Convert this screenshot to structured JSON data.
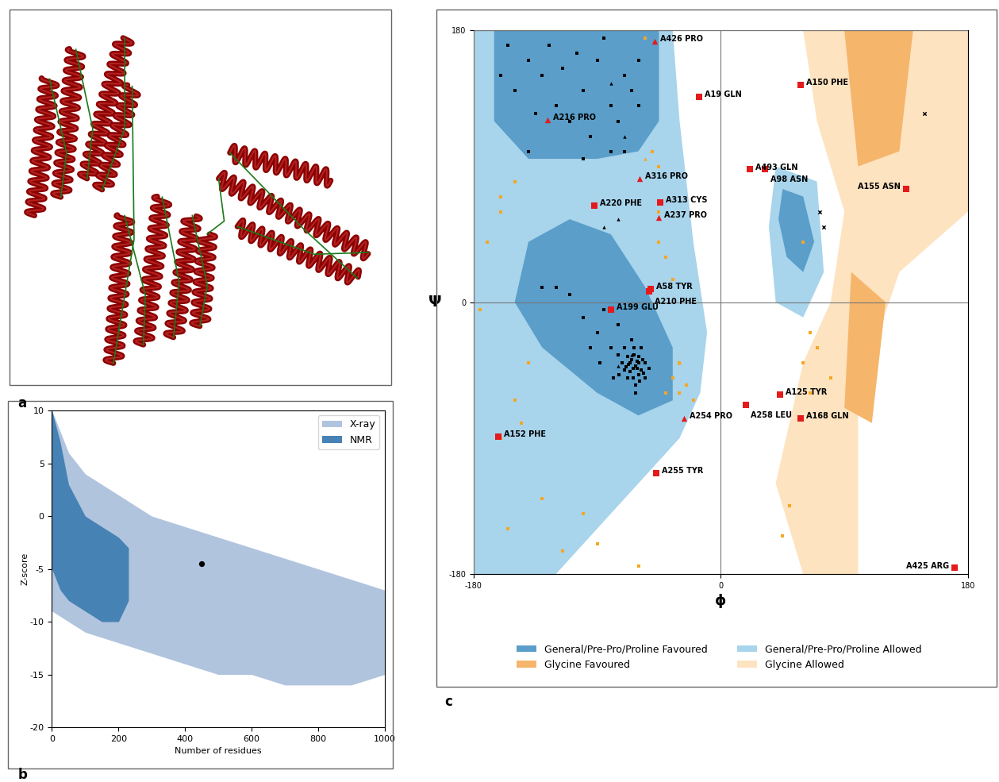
{
  "panel_labels": [
    "a",
    "b",
    "c"
  ],
  "chart_data": [
    {
      "type": "area",
      "xlabel": "Number of residues",
      "ylabel": "Z-score",
      "xlim": [
        0,
        1000
      ],
      "ylim": [
        -20,
        10
      ],
      "xticks": [
        0,
        200,
        400,
        600,
        800,
        1000
      ],
      "yticks": [
        -20,
        -15,
        -10,
        -5,
        0,
        5,
        10
      ],
      "legend": "upper right",
      "series": [
        {
          "name": "X-ray",
          "type": "area",
          "color": "#b0c4de",
          "x": [
            0,
            50,
            100,
            200,
            300,
            400,
            500,
            600,
            700,
            800,
            900,
            1000
          ],
          "upper": [
            10,
            6,
            4,
            2,
            0,
            -1,
            -2,
            -3,
            -4,
            -5,
            -6,
            -7
          ],
          "lower": [
            -9,
            -10,
            -11,
            -12,
            -13,
            -14,
            -15,
            -15,
            -16,
            -16,
            -16,
            -15
          ]
        },
        {
          "name": "NMR",
          "type": "area",
          "color": "#4682b4",
          "x": [
            0,
            25,
            50,
            100,
            150,
            200,
            230
          ],
          "upper": [
            10,
            7,
            3,
            0,
            -1,
            -2,
            -3
          ],
          "lower": [
            -5,
            -7,
            -8,
            -9,
            -10,
            -10,
            -8
          ]
        },
        {
          "type": "scatter",
          "color": "#000000",
          "marker": "circle",
          "x": [
            450
          ],
          "values": [
            -4.5
          ]
        }
      ]
    },
    {
      "type": "scatter",
      "xlabel": "ϕ",
      "ylabel": "Ψ",
      "xlim": [
        -180,
        180
      ],
      "ylim": [
        -180,
        180
      ],
      "xticks": [
        -180,
        0,
        180
      ],
      "yticks": [
        -180,
        0,
        180
      ],
      "grid": true,
      "legend": "lower center",
      "regions": [
        {
          "name": "Glycine Allowed",
          "color": "#fde3c0",
          "polygons": [
            [
              [
                60,
                180
              ],
              [
                180,
                180
              ],
              [
                180,
                60
              ],
              [
                130,
                20
              ],
              [
                100,
                -60
              ],
              [
                100,
                -180
              ],
              [
                60,
                -180
              ],
              [
                40,
                -120
              ],
              [
                60,
                -40
              ],
              [
                80,
                0
              ],
              [
                90,
                60
              ],
              [
                70,
                120
              ]
            ]
          ]
        },
        {
          "name": "Glycine Favoured",
          "color": "#f5b56b",
          "polygons": [
            [
              [
                90,
                180
              ],
              [
                140,
                180
              ],
              [
                130,
                100
              ],
              [
                100,
                90
              ]
            ],
            [
              [
                95,
                20
              ],
              [
                120,
                0
              ],
              [
                110,
                -80
              ],
              [
                90,
                -70
              ]
            ]
          ]
        },
        {
          "name": "General/Pre-Pro/Proline Allowed",
          "color": "#a8d4ec",
          "polygons": [
            [
              [
                -180,
                180
              ],
              [
                -35,
                180
              ],
              [
                -30,
                120
              ],
              [
                -20,
                40
              ],
              [
                -10,
                -20
              ],
              [
                -15,
                -60
              ],
              [
                -30,
                -90
              ],
              [
                -60,
                -120
              ],
              [
                -90,
                -150
              ],
              [
                -120,
                -180
              ],
              [
                -180,
                -180
              ]
            ],
            [
              [
                40,
                90
              ],
              [
                70,
                80
              ],
              [
                75,
                20
              ],
              [
                60,
                -10
              ],
              [
                40,
                0
              ],
              [
                35,
                50
              ]
            ]
          ]
        },
        {
          "name": "General/Pre-Pro/Proline Favoured",
          "color": "#5a9ec9",
          "polygons": [
            [
              [
                -165,
                180
              ],
              [
                -45,
                180
              ],
              [
                -45,
                120
              ],
              [
                -60,
                100
              ],
              [
                -90,
                95
              ],
              [
                -140,
                95
              ],
              [
                -165,
                120
              ]
            ],
            [
              [
                -140,
                40
              ],
              [
                -110,
                55
              ],
              [
                -80,
                45
              ],
              [
                -55,
                10
              ],
              [
                -35,
                -30
              ],
              [
                -35,
                -65
              ],
              [
                -60,
                -75
              ],
              [
                -90,
                -60
              ],
              [
                -130,
                -30
              ],
              [
                -150,
                0
              ]
            ],
            [
              [
                45,
                75
              ],
              [
                60,
                70
              ],
              [
                68,
                40
              ],
              [
                60,
                20
              ],
              [
                48,
                30
              ],
              [
                42,
                55
              ]
            ]
          ]
        }
      ],
      "series": [
        {
          "color": "#000000",
          "marker": "square",
          "x": [
            -60,
            -62,
            -65,
            -58,
            -63,
            -67,
            -70,
            -55,
            -60,
            -64,
            -68,
            -72,
            -57,
            -61,
            -66,
            -59,
            -63,
            -75,
            -70,
            -80,
            -55,
            -62,
            -68,
            -65,
            -90,
            -100,
            -85,
            -110,
            -120,
            -95,
            -78,
            -58,
            -60,
            -64,
            -66,
            -61,
            -69,
            -56,
            -52,
            -74,
            -62,
            -130,
            -75,
            -88,
            -120,
            -130,
            -100,
            -90,
            -70,
            -80,
            -140,
            -150,
            -110,
            -95,
            -75,
            -65,
            -60,
            -85,
            -125,
            -155,
            -70,
            -100,
            -140,
            -60,
            -115,
            -135,
            -105,
            -80,
            -160
          ],
          "values": [
            -40,
            -42,
            -38,
            -45,
            -35,
            -41,
            -45,
            -40,
            -48,
            -50,
            -36,
            -40,
            -38,
            -44,
            -46,
            -52,
            -30,
            -35,
            -30,
            -30,
            -50,
            -55,
            -50,
            -25,
            -20,
            -10,
            -5,
            5,
            10,
            -30,
            -50,
            -30,
            -36,
            -44,
            -40,
            -39,
            -43,
            -47,
            -44,
            -48,
            -60,
            10,
            -15,
            -40,
            130,
            150,
            140,
            160,
            150,
            130,
            160,
            140,
            120,
            110,
            120,
            140,
            160,
            175,
            170,
            170,
            100,
            95,
            100,
            130,
            155,
            125,
            165,
            100,
            150
          ]
        },
        {
          "color": "#000000",
          "marker": "triangle",
          "x": [
            -75,
            -85,
            -80,
            -70,
            -75,
            -65
          ],
          "values": [
            55,
            50,
            145,
            110,
            -42,
            -35
          ]
        },
        {
          "color": "#000000",
          "marker": "x",
          "x": [
            72,
            75,
            148
          ],
          "values": [
            60,
            50,
            125
          ]
        },
        {
          "color": "#f5a623",
          "marker": "square",
          "x": [
            -150,
            -160,
            -175,
            -140,
            -155,
            -160,
            -40,
            -30,
            -35,
            -30,
            -45,
            -50,
            -160,
            -170,
            -150,
            -145,
            60,
            65,
            70,
            60,
            65,
            80,
            50,
            45,
            -115,
            -130,
            -90,
            -60,
            -100,
            -45,
            -40,
            -45,
            -35,
            -25,
            -20,
            -55
          ],
          "values": [
            80,
            60,
            -5,
            -40,
            -150,
            -90,
            -60,
            -40,
            -50,
            -60,
            90,
            100,
            70,
            40,
            -65,
            -80,
            40,
            -20,
            -30,
            -40,
            -60,
            -50,
            -135,
            -155,
            -165,
            -130,
            -160,
            -175,
            -140,
            60,
            30,
            40,
            15,
            -55,
            -65,
            175
          ]
        },
        {
          "color": "#f5a623",
          "marker": "triangle",
          "x": [
            -30,
            -55
          ],
          "values": [
            -40,
            95
          ]
        },
        {
          "color": "#e41a1c",
          "marker": "square",
          "x": [
            -16,
            58,
            21,
            32,
            135,
            -92,
            -44,
            -51,
            -52,
            -80,
            43,
            18,
            58,
            -162,
            -47,
            170
          ],
          "values": [
            136,
            144,
            88,
            88,
            75,
            64,
            66,
            9,
            7,
            -5,
            -61,
            -68,
            -77,
            -89,
            -113,
            -176
          ],
          "point_labels": [
            "A19 GLN",
            "A150 PHE",
            "A493 GLN",
            "A98 ASN",
            "A155 ASN",
            "A220 PHE",
            "A313 CYS",
            "A58 TYR",
            "A210 PHE",
            "A199 GLU",
            "A125 TYR",
            "A258 LEU",
            "A168 GLN",
            "A152 PHE",
            "A255 TYR",
            "A425 ARG"
          ]
        },
        {
          "color": "#e41a1c",
          "marker": "triangle",
          "x": [
            -48,
            -126,
            -59,
            -45,
            -27
          ],
          "values": [
            173,
            121,
            82,
            56,
            -77
          ],
          "point_labels": [
            "A426 PRO",
            "A216 PRO",
            "A316 PRO",
            "A237 PRO",
            "A254 PRO"
          ]
        }
      ]
    }
  ]
}
